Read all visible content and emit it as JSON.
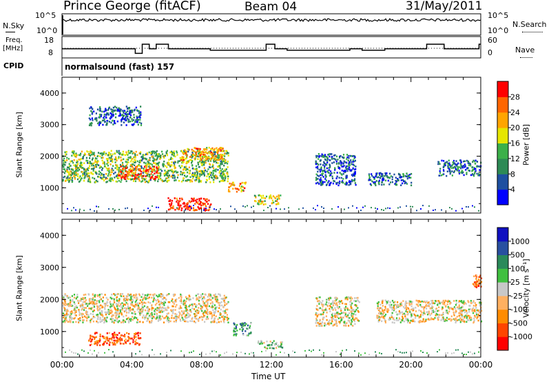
{
  "header": {
    "station": "Prince George (fitACF)",
    "beam": "Beam 04",
    "date": "31/May/2011"
  },
  "top_panel": {
    "nsky_label": "N.Sky",
    "nsearch_label": "N.Search",
    "nsky_ticks": [
      "10^5",
      "10^0"
    ],
    "nsearch_ticks": [
      "10^5",
      "10^0"
    ],
    "freq_label": "Freq.",
    "freq_unit": "[MHz]",
    "freq_ticks": [
      "18",
      "8"
    ],
    "nave_label": "Nave",
    "nave_ticks": [
      "60",
      "0"
    ],
    "cpid_label": "CPID",
    "cpid_value": "normalsound (fast) 157"
  },
  "colors": {
    "power": [
      "#0000ff",
      "#1e50a0",
      "#2d8a55",
      "#3cb04a",
      "#e6e600",
      "#ffa500",
      "#ff6600",
      "#ff0000"
    ],
    "velocity": [
      "#ff0000",
      "#ff4500",
      "#ff8c00",
      "#ffb060",
      "#c8c8c8",
      "#40c040",
      "#2a8a5a",
      "#2850a0",
      "#1010c0"
    ],
    "ground_scatter": "#c8c8c8"
  },
  "chart_data": [
    {
      "type": "heatmap",
      "name": "power",
      "ylabel": "Slant Range [km]",
      "ylim": [
        200,
        4500
      ],
      "xlim": [
        0,
        24
      ],
      "yticks": [
        1000,
        2000,
        3000,
        4000
      ],
      "colorbar": {
        "label": "Power [dB]",
        "range": [
          0,
          32
        ],
        "ticks": [
          4,
          8,
          12,
          16,
          20,
          24,
          28
        ]
      },
      "features": [
        {
          "t0": 0.0,
          "t1": 9.5,
          "r0": 1200,
          "r1": 2200,
          "level": 0.45
        },
        {
          "t0": 3.2,
          "t1": 5.5,
          "r0": 1300,
          "r1": 1700,
          "level": 0.85
        },
        {
          "t0": 6.0,
          "t1": 8.5,
          "r0": 300,
          "r1": 700,
          "level": 0.95
        },
        {
          "t0": 6.8,
          "t1": 9.2,
          "r0": 1900,
          "r1": 2300,
          "level": 0.7
        },
        {
          "t0": 9.5,
          "t1": 10.5,
          "r0": 900,
          "r1": 1200,
          "level": 0.7
        },
        {
          "t0": 11.0,
          "t1": 12.5,
          "r0": 500,
          "r1": 800,
          "level": 0.55
        },
        {
          "t0": 14.5,
          "t1": 16.8,
          "r0": 1100,
          "r1": 2100,
          "level": 0.2
        },
        {
          "t0": 17.5,
          "t1": 20.0,
          "r0": 1100,
          "r1": 1500,
          "level": 0.25
        },
        {
          "t0": 21.5,
          "t1": 24.0,
          "r0": 1400,
          "r1": 1900,
          "level": 0.25
        },
        {
          "t0": 1.5,
          "t1": 4.5,
          "r0": 3000,
          "r1": 3600,
          "level": 0.2
        }
      ]
    },
    {
      "type": "heatmap",
      "name": "velocity",
      "ylabel": "Slant Range [km]",
      "xlabel": "Time UT",
      "ylim": [
        200,
        4500
      ],
      "xlim": [
        0,
        24
      ],
      "yticks": [
        1000,
        2000,
        3000,
        4000
      ],
      "xticks": [
        "00:00",
        "04:00",
        "08:00",
        "12:00",
        "16:00",
        "20:00",
        "00:00"
      ],
      "colorbar": {
        "label": "Velocity [m s⁻¹]",
        "ticks": [
          "1000",
          "500",
          "100",
          "25",
          "-25",
          "-100",
          "-500",
          "-1000"
        ]
      },
      "features": [
        {
          "t0": 0.0,
          "t1": 9.5,
          "r0": 1300,
          "r1": 2200,
          "level": 0.45
        },
        {
          "t0": 1.5,
          "t1": 4.5,
          "r0": 600,
          "r1": 1000,
          "level": 0.2
        },
        {
          "t0": 9.8,
          "t1": 10.8,
          "r0": 900,
          "r1": 1300,
          "level": 0.7
        },
        {
          "t0": 11.2,
          "t1": 12.6,
          "r0": 500,
          "r1": 750,
          "level": 0.6
        },
        {
          "t0": 14.5,
          "t1": 17.0,
          "r0": 1200,
          "r1": 2100,
          "level": 0.45
        },
        {
          "t0": 18.0,
          "t1": 24.0,
          "r0": 1300,
          "r1": 2000,
          "level": 0.45
        },
        {
          "t0": 23.5,
          "t1": 24.0,
          "r0": 2400,
          "r1": 2800,
          "level": 0.25
        }
      ]
    }
  ]
}
